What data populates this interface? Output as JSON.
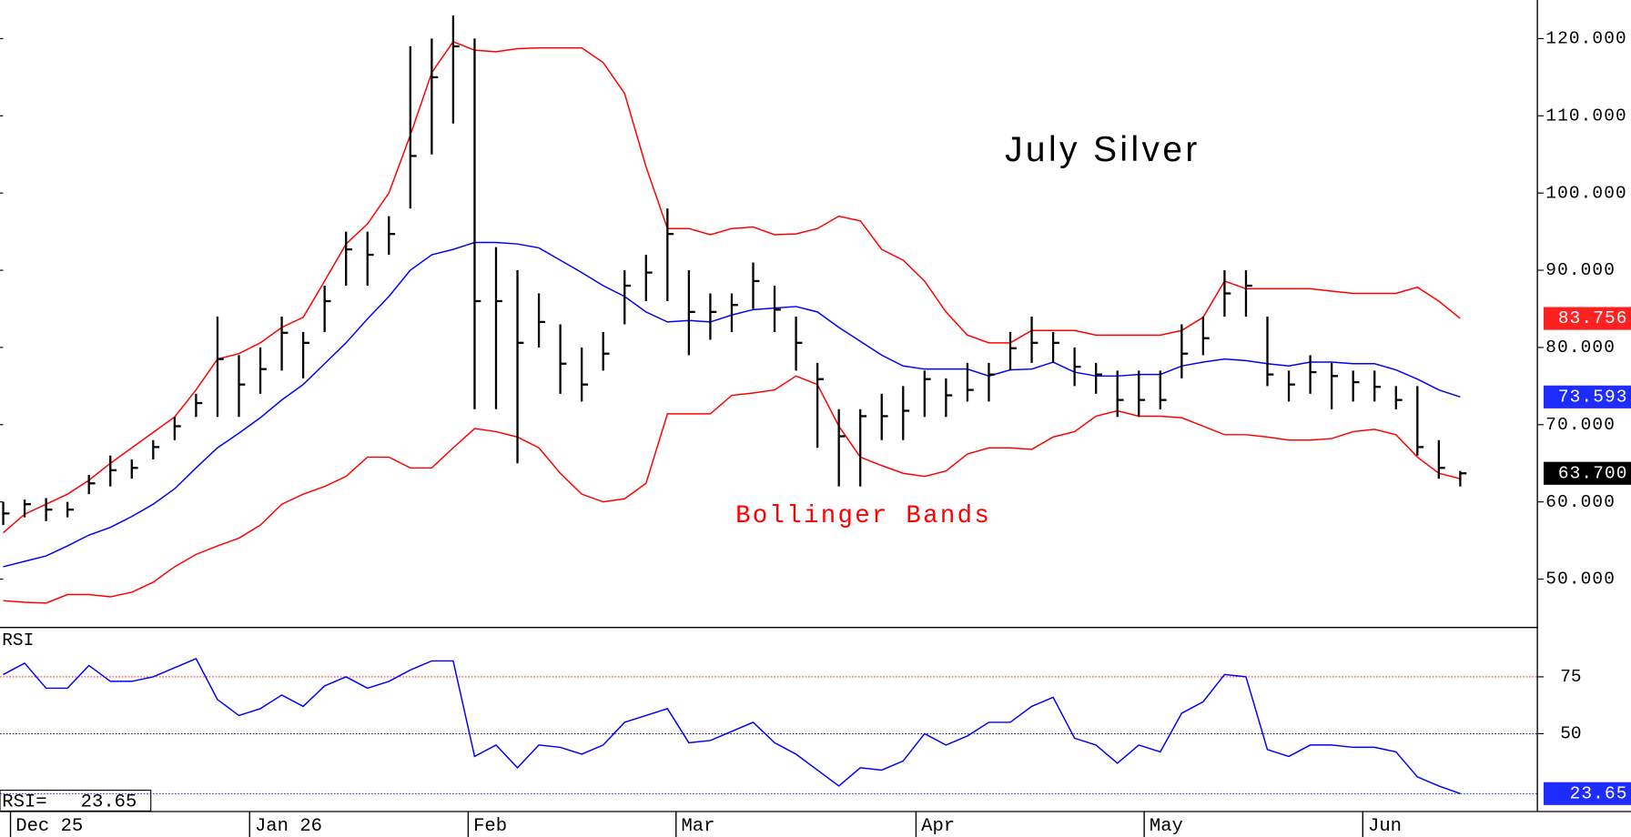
{
  "chart_data": [
    {
      "type": "hlc",
      "title": "July Silver",
      "annotation": "Bollinger Bands",
      "annotation_color": "#ff0000",
      "bar_color": "#000000",
      "xlim": [
        -0.15,
        71.6
      ],
      "ylim": [
        43.8,
        125
      ],
      "xticks": [
        {
          "value": 0.34,
          "label": "Dec 25"
        },
        {
          "value": 11.5,
          "label": "Jan 26"
        },
        {
          "value": 21.7,
          "label": "Feb"
        },
        {
          "value": 31.4,
          "label": "Mar"
        },
        {
          "value": 42.6,
          "label": "Apr"
        },
        {
          "value": 53.25,
          "label": "May"
        },
        {
          "value": 63.45,
          "label": "Jun"
        }
      ],
      "yticks": [
        {
          "value": 120,
          "label": "120.000"
        },
        {
          "value": 110,
          "label": "110.000"
        },
        {
          "value": 100,
          "label": "100.000"
        },
        {
          "value": 90,
          "label": "90.000"
        },
        {
          "value": 80,
          "label": "80.000"
        },
        {
          "value": 70,
          "label": "70.000"
        },
        {
          "value": 60,
          "label": "60.000"
        },
        {
          "value": 50,
          "label": "50.000"
        }
      ],
      "high": [
        60,
        60.3,
        60.5,
        60,
        63.5,
        66,
        65.5,
        68,
        71,
        74,
        84,
        79,
        80,
        84,
        82,
        88,
        95,
        95,
        97,
        119,
        120,
        123,
        120,
        93,
        90,
        87,
        83,
        80,
        82,
        90,
        92,
        98,
        90,
        87,
        87,
        91,
        88,
        84,
        78,
        72,
        72,
        74,
        75,
        77,
        76,
        78,
        78,
        82,
        84,
        82,
        80,
        78,
        77,
        77,
        77,
        83,
        84,
        90,
        90,
        84,
        77,
        79,
        78,
        77,
        77,
        75,
        75,
        68,
        64
      ],
      "low": [
        57,
        58,
        57.5,
        58,
        61,
        62,
        63,
        65.5,
        68,
        71,
        71,
        71,
        74,
        77,
        76,
        82,
        88,
        88,
        92,
        98,
        105,
        109,
        72,
        72,
        65,
        80,
        74,
        73,
        77,
        83,
        86,
        86,
        79,
        81,
        82,
        85,
        82,
        77,
        67,
        62,
        62,
        68,
        68,
        71,
        71,
        73,
        73,
        77,
        78,
        78,
        75,
        74,
        71,
        71,
        72,
        76,
        79,
        84,
        84,
        75,
        73,
        74,
        72,
        73,
        73,
        72,
        66,
        63,
        62
      ],
      "close": [
        58.5,
        59.7,
        59,
        59,
        62.4,
        64.1,
        64.4,
        67.1,
        69.8,
        72.8,
        78.5,
        75.2,
        77.2,
        81.9,
        80.6,
        86,
        92.7,
        92,
        94.7,
        104.8,
        115,
        119,
        86,
        86,
        80.6,
        83.3,
        77.9,
        75.2,
        79.2,
        88,
        89.7,
        94.7,
        84.6,
        84.6,
        85.5,
        88.6,
        84.9,
        80.6,
        75.9,
        68.5,
        71.1,
        71.1,
        71.8,
        75.9,
        73.8,
        74.5,
        76.5,
        79.9,
        80.6,
        80.6,
        77.5,
        76.5,
        73.2,
        73.2,
        73.2,
        79.2,
        81.2,
        87,
        88,
        76.5,
        75.2,
        76.8,
        76.3,
        75.5,
        74.9,
        73.2,
        67.1,
        64.4,
        63.7
      ],
      "overlays": [
        {
          "color": "#ff0000",
          "values": [
            56,
            58.4,
            59.7,
            61,
            62.8,
            65,
            67,
            69,
            71,
            74.5,
            78.5,
            79.2,
            80.6,
            82.6,
            83.9,
            88.6,
            93.4,
            96,
            100,
            107.5,
            115.6,
            119.6,
            118.5,
            118.3,
            118.7,
            118.8,
            118.8,
            118.8,
            116.9,
            112.9,
            103.4,
            95.4,
            95.4,
            94.6,
            95.4,
            95.6,
            94.6,
            94.7,
            95.4,
            97,
            96.4,
            92.7,
            91.3,
            88.6,
            84.6,
            81.6,
            80.6,
            80.6,
            82.2,
            82.2,
            82.2,
            81.6,
            81.6,
            81.6,
            81.6,
            82.2,
            83.9,
            88.6,
            87.6,
            87.6,
            87.6,
            87.6,
            87.3,
            87,
            87,
            87,
            87.8,
            86,
            83.756
          ]
        },
        {
          "color": "#0000ff",
          "values": [
            51.6,
            52.3,
            53,
            54.3,
            55.7,
            56.7,
            58.1,
            59.7,
            61.7,
            64.4,
            67,
            68.9,
            70.9,
            73.2,
            75.2,
            77.9,
            80.6,
            83.7,
            86.6,
            90,
            92,
            92.7,
            93.6,
            93.6,
            93.4,
            92.9,
            91.3,
            89.7,
            88,
            86.6,
            84.6,
            83.3,
            83.5,
            83.3,
            84.2,
            84.9,
            85.1,
            85.3,
            84.6,
            82.6,
            80.8,
            79,
            77.6,
            77.2,
            77.2,
            77.2,
            76.3,
            77.1,
            77.2,
            78.1,
            76.8,
            76.3,
            76.3,
            76.5,
            76.5,
            77.6,
            78.1,
            78.5,
            78.3,
            77.9,
            77.6,
            78.1,
            78.1,
            77.9,
            77.9,
            77.1,
            75.9,
            74.5,
            73.593
          ]
        },
        {
          "color": "#ff0000",
          "values": [
            47.2,
            47,
            46.9,
            48,
            48,
            47.7,
            48.3,
            49.6,
            51.6,
            53.2,
            54.3,
            55.3,
            57,
            59.7,
            61,
            62,
            63.3,
            65.8,
            65.8,
            64.4,
            64.4,
            67,
            69.5,
            69.1,
            68.4,
            67,
            63.7,
            61,
            60,
            60.4,
            62.4,
            71.4,
            71.4,
            71.4,
            73.8,
            74.1,
            74.5,
            76.3,
            75.2,
            69.8,
            65.8,
            64.7,
            63.7,
            63.3,
            64,
            66.2,
            67,
            67,
            66.8,
            68.4,
            69.1,
            71.1,
            71.8,
            71.1,
            71.1,
            70.9,
            69.8,
            68.7,
            68.7,
            68.4,
            68,
            68,
            68.2,
            69.1,
            69.4,
            68.7,
            65.8,
            63.7,
            63
          ]
        }
      ],
      "last_labels": [
        {
          "value": 83.756,
          "label": "83.756",
          "color": "#ff2020"
        },
        {
          "value": 73.593,
          "label": "73.593",
          "color": "#1e2cff"
        },
        {
          "value": 63.7,
          "label": "63.700",
          "color": "#000000"
        }
      ]
    },
    {
      "type": "line",
      "label": "RSI",
      "readout": "RSI=   23.65",
      "color": "#0000ff",
      "xlim": [
        -0.15,
        71.6
      ],
      "ylim": [
        16,
        96
      ],
      "yticks": [
        75,
        50
      ],
      "levels": [
        {
          "value": 75,
          "color": "#ff0000"
        },
        {
          "value": 50,
          "color": "#000080"
        },
        {
          "value": 23.65,
          "color": "#0000ff"
        }
      ],
      "last_labels": [
        {
          "value": 23.65,
          "label": "23.65",
          "color": "#1e2cff"
        }
      ],
      "values": [
        76,
        81,
        70,
        70,
        80,
        73,
        73,
        75,
        79,
        83,
        65,
        58,
        61,
        67,
        62,
        71,
        75,
        70,
        73,
        78,
        82,
        82,
        40,
        45,
        35,
        45,
        44,
        41,
        45,
        55,
        58,
        61,
        46,
        47,
        51,
        55,
        46,
        41,
        34,
        27,
        35,
        34,
        38,
        50,
        45,
        49,
        55,
        55,
        62,
        66,
        48,
        45,
        37,
        45,
        42,
        59,
        64,
        76,
        75,
        43,
        40,
        45,
        45,
        44,
        44,
        42,
        31,
        27,
        23.65
      ]
    }
  ]
}
